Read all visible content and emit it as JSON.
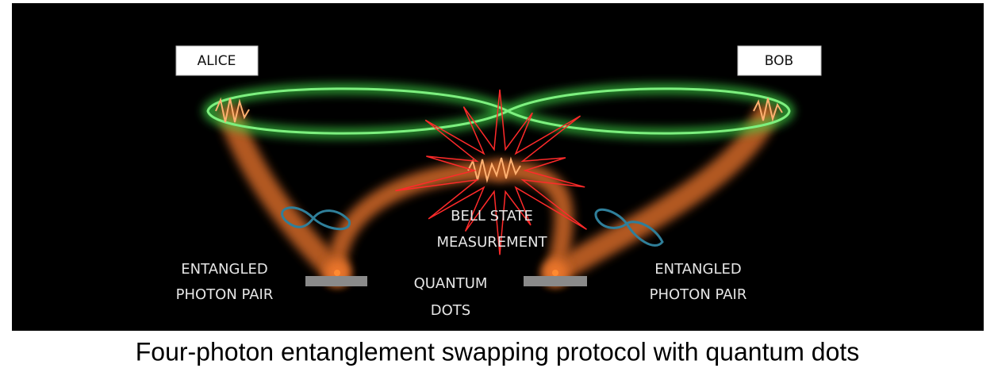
{
  "labels": {
    "alice": "ALICE",
    "bob": "BOB",
    "bell_state": [
      "BELL STATE",
      "MEASUREMENT"
    ],
    "left_pair": [
      "ENTANGLED",
      "PHOTON PAIR"
    ],
    "right_pair": [
      "ENTANGLED",
      "PHOTON PAIR"
    ],
    "quantum_dots": [
      "QUANTUM",
      "DOTS"
    ]
  },
  "caption": "Four-photon entanglement swapping protocol with quantum dots"
}
